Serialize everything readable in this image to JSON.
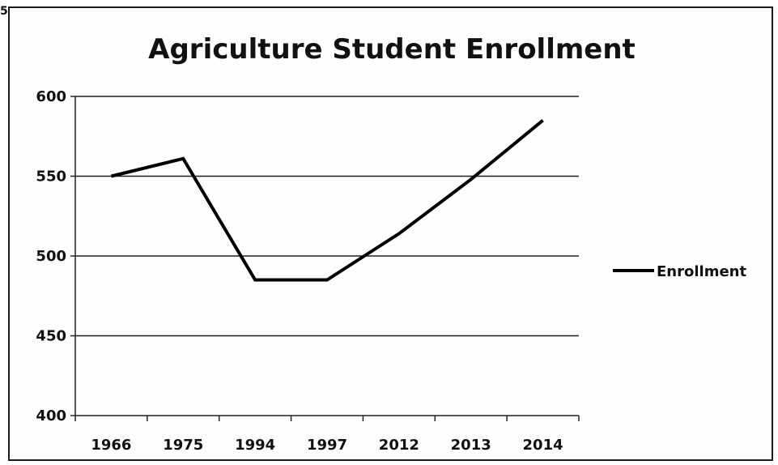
{
  "chart_data": {
    "type": "line",
    "title": "Agriculture Student Enrollment",
    "categories": [
      "1966",
      "1975",
      "1994",
      "1997",
      "2012",
      "2013",
      "2014"
    ],
    "series": [
      {
        "name": "Enrollment",
        "values": [
          550,
          561,
          485,
          485,
          514,
          548,
          585
        ],
        "color": "#000000"
      }
    ],
    "ylim": [
      400,
      600
    ],
    "yticks": [
      400,
      450,
      500,
      550,
      600
    ],
    "xlabel": "",
    "ylabel": "",
    "grid": true,
    "legend": "right"
  },
  "stray_mark": "5"
}
